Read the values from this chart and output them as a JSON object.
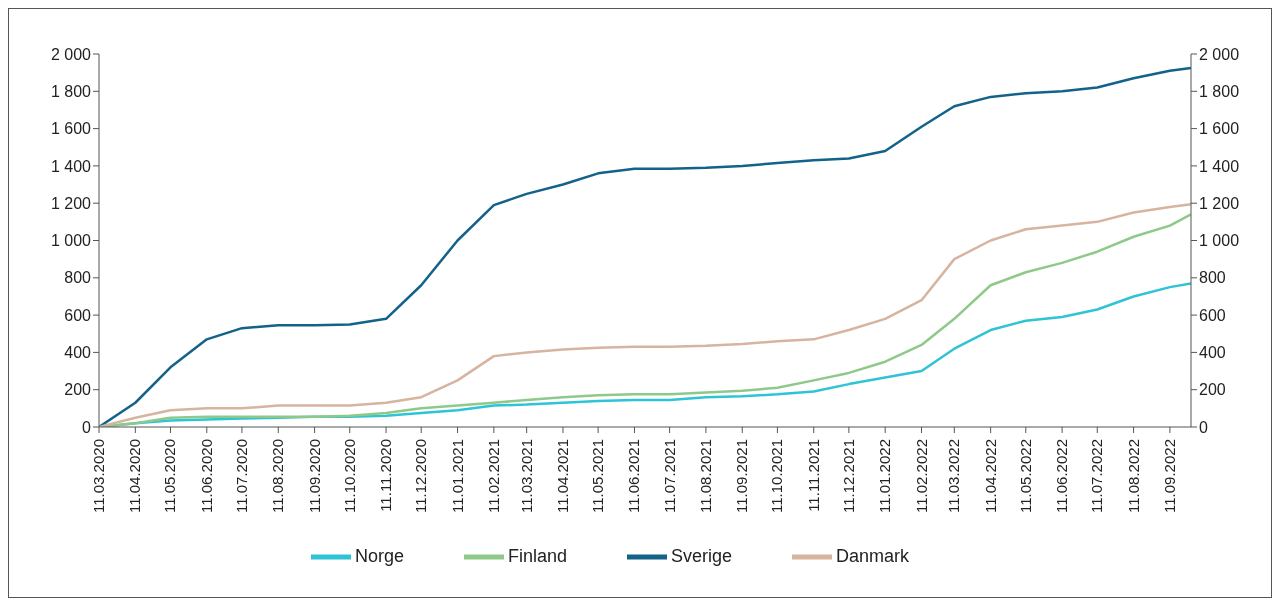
{
  "chart_data": {
    "type": "line",
    "x": [
      "2020-03-11",
      "2020-04-11",
      "2020-05-11",
      "2020-06-11",
      "2020-07-11",
      "2020-08-11",
      "2020-09-11",
      "2020-10-11",
      "2020-11-11",
      "2020-12-11",
      "2021-01-11",
      "2021-02-11",
      "2021-03-11",
      "2021-04-11",
      "2021-05-11",
      "2021-06-11",
      "2021-07-11",
      "2021-08-11",
      "2021-09-11",
      "2021-10-11",
      "2021-11-11",
      "2021-12-11",
      "2022-01-11",
      "2022-02-11",
      "2022-03-11",
      "2022-04-11",
      "2022-05-11",
      "2022-06-11",
      "2022-07-11",
      "2022-08-11",
      "2022-09-11",
      "2022-09-29"
    ],
    "series": [
      {
        "name": "Norge",
        "color": "#2ec4d6",
        "values": [
          0,
          20,
          35,
          40,
          45,
          50,
          55,
          55,
          60,
          75,
          90,
          115,
          120,
          130,
          140,
          145,
          145,
          160,
          165,
          175,
          190,
          230,
          265,
          300,
          420,
          520,
          570,
          590,
          630,
          700,
          750,
          770
        ]
      },
      {
        "name": "Finland",
        "color": "#8fc98a",
        "values": [
          0,
          20,
          50,
          55,
          55,
          55,
          55,
          60,
          75,
          100,
          115,
          130,
          145,
          160,
          170,
          175,
          175,
          185,
          195,
          210,
          250,
          290,
          350,
          440,
          580,
          760,
          830,
          880,
          940,
          1020,
          1080,
          1140
        ]
      },
      {
        "name": "Sverige",
        "color": "#12628a",
        "values": [
          0,
          130,
          320,
          470,
          530,
          545,
          545,
          550,
          580,
          760,
          1000,
          1190,
          1250,
          1300,
          1360,
          1385,
          1385,
          1390,
          1400,
          1415,
          1430,
          1440,
          1480,
          1610,
          1720,
          1770,
          1790,
          1800,
          1820,
          1870,
          1910,
          1925
        ]
      },
      {
        "name": "Danmark",
        "color": "#d6b4a0",
        "values": [
          0,
          50,
          90,
          100,
          100,
          115,
          115,
          115,
          130,
          160,
          250,
          380,
          400,
          415,
          425,
          430,
          430,
          435,
          445,
          460,
          470,
          520,
          580,
          680,
          900,
          1000,
          1060,
          1080,
          1100,
          1150,
          1180,
          1195
        ]
      }
    ],
    "xlim": [
      "2020-03-11",
      "2022-09-29"
    ],
    "xticks": [
      {
        "value": "2020-03-11",
        "label": "11.03.2020"
      },
      {
        "value": "2020-04-11",
        "label": "11.04.2020"
      },
      {
        "value": "2020-05-11",
        "label": "11.05.2020"
      },
      {
        "value": "2020-06-11",
        "label": "11.06.2020"
      },
      {
        "value": "2020-07-11",
        "label": "11.07.2020"
      },
      {
        "value": "2020-08-11",
        "label": "11.08.2020"
      },
      {
        "value": "2020-09-11",
        "label": "11.09.2020"
      },
      {
        "value": "2020-10-11",
        "label": "11.10.2020"
      },
      {
        "value": "2020-11-11",
        "label": "11.11.2020"
      },
      {
        "value": "2020-12-11",
        "label": "11.12.2020"
      },
      {
        "value": "2021-01-11",
        "label": "11.01.2021"
      },
      {
        "value": "2021-02-11",
        "label": "11.02.2021"
      },
      {
        "value": "2021-03-11",
        "label": "11.03.2021"
      },
      {
        "value": "2021-04-11",
        "label": "11.04.2021"
      },
      {
        "value": "2021-05-11",
        "label": "11.05.2021"
      },
      {
        "value": "2021-06-11",
        "label": "11.06.2021"
      },
      {
        "value": "2021-07-11",
        "label": "11.07.2021"
      },
      {
        "value": "2021-08-11",
        "label": "11.08.2021"
      },
      {
        "value": "2021-09-11",
        "label": "11.09.2021"
      },
      {
        "value": "2021-10-11",
        "label": "11.10.2021"
      },
      {
        "value": "2021-11-11",
        "label": "11.11.2021"
      },
      {
        "value": "2021-12-11",
        "label": "11.12.2021"
      },
      {
        "value": "2022-01-11",
        "label": "11.01.2022"
      },
      {
        "value": "2022-02-11",
        "label": "11.02.2022"
      },
      {
        "value": "2022-03-11",
        "label": "11.03.2022"
      },
      {
        "value": "2022-04-11",
        "label": "11.04.2022"
      },
      {
        "value": "2022-05-11",
        "label": "11.05.2022"
      },
      {
        "value": "2022-06-11",
        "label": "11.06.2022"
      },
      {
        "value": "2022-07-11",
        "label": "11.07.2022"
      },
      {
        "value": "2022-08-11",
        "label": "11.08.2022"
      },
      {
        "value": "2022-09-11",
        "label": "11.09.2022"
      }
    ],
    "ylim": [
      0,
      2000
    ],
    "yticks": [
      0,
      200,
      400,
      600,
      800,
      {
        "value": 1000,
        "label": "1 000"
      },
      {
        "value": 1200,
        "label": "1 200"
      },
      {
        "value": 1400,
        "label": "1 400"
      },
      {
        "value": 1600,
        "label": "1 600"
      },
      {
        "value": 1800,
        "label": "1 800"
      },
      {
        "value": 2000,
        "label": "2 000"
      }
    ],
    "y2lim": [
      0,
      2000
    ],
    "y2ticks": [
      0,
      200,
      400,
      600,
      800,
      {
        "value": 1000,
        "label": "1 000"
      },
      {
        "value": 1200,
        "label": "1 200"
      },
      {
        "value": 1400,
        "label": "1 400"
      },
      {
        "value": 1600,
        "label": "1 600"
      },
      {
        "value": 1800,
        "label": "1 800"
      },
      {
        "value": 2000,
        "label": "2 000"
      }
    ],
    "grid": false,
    "legend": "bottom",
    "marker": "none",
    "line_style": "solid"
  }
}
